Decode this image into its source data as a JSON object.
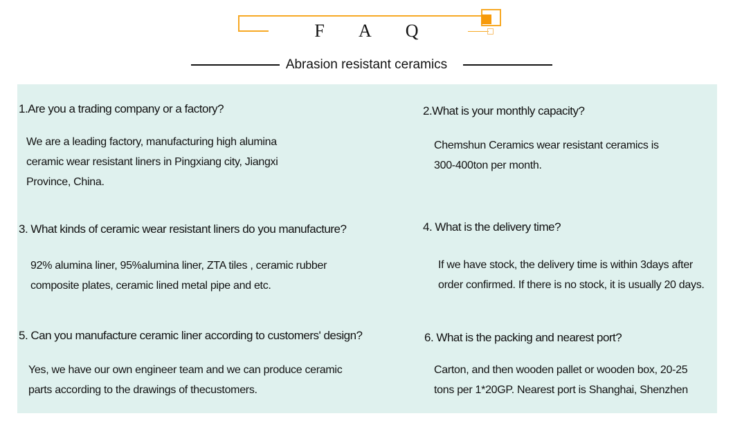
{
  "header": {
    "title": "F A Q",
    "subtitle": "Abrasion resistant ceramics",
    "accent_color": "#f7a823"
  },
  "panel": {
    "background": "#dff1ee"
  },
  "faq": [
    {
      "question": "1.Are you a trading company or a factory?",
      "answer": [
        "We are a leading factory, manufacturing high alumina",
        "ceramic wear resistant liners in Pingxiang city, Jiangxi",
        "Province, China."
      ]
    },
    {
      "question": "2.What is your monthly capacity?",
      "answer": [
        "Chemshun Ceramics wear resistant ceramics is",
        "300-400ton per month."
      ]
    },
    {
      "question": "3. What kinds of ceramic wear resistant liners do you manufacture?",
      "answer": [
        "92% alumina liner, 95%alumina liner, ZTA tiles , ceramic rubber",
        "composite plates, ceramic lined metal pipe and etc."
      ]
    },
    {
      "question": "4. What is the delivery time?",
      "answer": [
        "If we have stock, the delivery time is within 3days after",
        "order confirmed. If there is no stock, it is usually 20 days."
      ]
    },
    {
      "question": "5. Can you manufacture ceramic liner according to customers' design?",
      "answer": [
        "Yes, we have our own engineer team and we can produce ceramic",
        "parts according to the drawings of thecustomers."
      ]
    },
    {
      "question": "6. What is the packing and nearest port?",
      "answer": [
        "Carton, and then wooden pallet or wooden box, 20-25",
        "tons per 1*20GP. Nearest port is Shanghai, Shenzhen"
      ]
    }
  ]
}
